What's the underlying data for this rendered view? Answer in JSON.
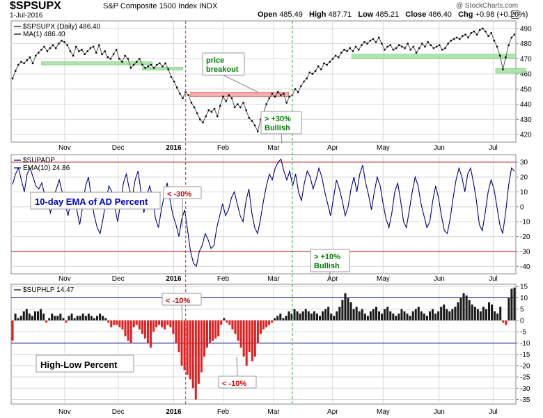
{
  "header": {
    "symbol": "$SPSUPX",
    "index_name": "S&P Composite 1500 Index  INDX",
    "date": "1-Jul-2016",
    "open_label": "Open",
    "open": "485.49",
    "high_label": "High",
    "high": "487.71",
    "low_label": "Low",
    "low": "485.21",
    "close_label": "Close",
    "close": "486.40",
    "chg_label": "Chg",
    "chg": "+0.98 (+0.20%)",
    "credit": "@ StockCharts.com",
    "chg_icon": "down-triangle-icon"
  },
  "colors": {
    "price": "#000000",
    "ema": "#000080",
    "bar_up": "#1a1a1a",
    "bar_down": "#e02020",
    "threshold": "#c00000",
    "ref_line": "#000080",
    "support_fill": "#a6e3a6",
    "resistance_fill": "#f4a6a6",
    "marker_red": "#e05050",
    "marker_green": "#5cb85c",
    "note_green": "#008000",
    "note_red": "#cc0000",
    "note_blue": "#0000cc"
  },
  "months": [
    "Nov",
    "Dec",
    "2016",
    "Feb",
    "Mar",
    "Apr",
    "May",
    "Jun",
    "Jul"
  ],
  "chart_data": [
    {
      "type": "line",
      "panel": "price",
      "legend": [
        "$SPSUPX (Daily) 486.40",
        "MA(1) 486.40"
      ],
      "ylim": [
        415,
        495
      ],
      "yticks": [
        420,
        430,
        440,
        450,
        460,
        470,
        480,
        490
      ],
      "values": [
        457,
        462,
        466,
        468,
        467,
        469,
        471,
        467,
        472,
        474,
        476,
        478,
        475,
        477,
        479,
        477,
        480,
        482,
        481,
        479,
        475,
        472,
        478,
        475,
        476,
        473,
        475,
        477,
        478,
        474,
        479,
        473,
        475,
        471,
        470,
        473,
        476,
        470,
        468,
        472,
        470,
        464,
        466,
        468,
        470,
        466,
        464,
        465,
        466,
        464,
        466,
        467,
        465,
        467,
        463,
        458,
        455,
        451,
        447,
        444,
        448,
        446,
        441,
        438,
        434,
        430,
        428,
        432,
        436,
        435,
        437,
        432,
        439,
        445,
        442,
        446,
        444,
        438,
        440,
        438,
        441,
        436,
        431,
        429,
        426,
        422,
        430,
        434,
        440,
        444,
        447,
        445,
        448,
        446,
        447,
        441,
        445,
        446,
        450,
        448,
        452,
        455,
        457,
        461,
        460,
        462,
        465,
        463,
        467,
        466,
        468,
        470,
        472,
        471,
        474,
        476,
        475,
        477,
        475,
        478,
        476,
        479,
        481,
        480,
        482,
        483,
        481,
        484,
        480,
        476,
        478,
        479,
        476,
        477,
        479,
        478,
        477,
        480,
        476,
        478,
        474,
        477,
        480,
        478,
        481,
        479,
        477,
        478,
        479,
        476,
        477,
        480,
        482,
        483,
        484,
        483,
        485,
        486,
        484,
        487,
        488,
        486,
        489,
        490,
        488,
        485,
        487,
        482,
        478,
        472,
        463,
        471,
        479,
        484,
        486
      ],
      "support_zones": [
        {
          "x0": 0.06,
          "x1": 0.28,
          "y0": 466,
          "y1": 468
        },
        {
          "x0": 0.26,
          "x1": 0.34,
          "y0": 462.5,
          "y1": 464.5
        },
        {
          "x0": 0.675,
          "x1": 1.0,
          "y0": 470,
          "y1": 473
        },
        {
          "x0": 0.96,
          "x1": 1.02,
          "y0": 460.5,
          "y1": 463.5
        }
      ],
      "resistance_zone": {
        "x0": 0.355,
        "x1": 0.55,
        "y0": 445,
        "y1": 448
      },
      "annotations": [
        {
          "text": "price breakout",
          "lines": [
            "price",
            "breakout"
          ],
          "color": "green"
        },
        {
          "text": "> +30% Bullish",
          "lines": [
            "> +30%",
            "Bullish"
          ],
          "color": "green"
        }
      ]
    },
    {
      "type": "line",
      "panel": "ad_percent",
      "legend": [
        "$SUPADP",
        "EMA(10) 24.86"
      ],
      "label": "10-day EMA of AD Percent",
      "ylim": [
        -45,
        35
      ],
      "yticks": [
        30,
        20,
        10,
        0,
        -10,
        -20,
        -30,
        -40
      ],
      "thresholds": [
        30,
        -30
      ],
      "values": [
        15,
        22,
        26,
        18,
        10,
        22,
        26,
        20,
        14,
        12,
        16,
        8,
        2,
        -4,
        6,
        12,
        18,
        10,
        2,
        -6,
        4,
        10,
        -2,
        -12,
        0,
        14,
        20,
        6,
        -6,
        -14,
        -18,
        -8,
        4,
        14,
        10,
        0,
        -10,
        2,
        16,
        22,
        12,
        6,
        18,
        24,
        10,
        -4,
        8,
        14,
        6,
        -8,
        -14,
        -2,
        8,
        16,
        4,
        -6,
        -12,
        -20,
        -8,
        -2,
        -16,
        -30,
        -38,
        -40,
        -30,
        -26,
        -18,
        -22,
        -28,
        -26,
        -14,
        -6,
        2,
        -6,
        -2,
        6,
        10,
        2,
        -6,
        -10,
        4,
        12,
        -4,
        -14,
        -18,
        -8,
        4,
        14,
        22,
        18,
        26,
        30,
        32,
        24,
        18,
        24,
        14,
        22,
        10,
        4,
        16,
        24,
        20,
        12,
        18,
        26,
        20,
        10,
        2,
        -6,
        6,
        18,
        12,
        4,
        -6,
        0,
        12,
        20,
        10,
        22,
        28,
        16,
        8,
        -2,
        10,
        20,
        14,
        2,
        -8,
        -14,
        -4,
        10,
        16,
        4,
        -10,
        -14,
        -2,
        10,
        20,
        14,
        2,
        -6,
        -14,
        -10,
        4,
        14,
        6,
        -6,
        -16,
        -18,
        -8,
        6,
        18,
        26,
        20,
        10,
        22,
        26,
        16,
        4,
        -12,
        -16,
        -4,
        10,
        18,
        12,
        0,
        -12,
        -18,
        -4,
        14,
        26,
        24
      ],
      "annotations": [
        {
          "text": "< -30%",
          "color": "red"
        },
        {
          "text": "> +10% Bullish",
          "lines": [
            "> +10%",
            "Bullish"
          ],
          "color": "green"
        }
      ]
    },
    {
      "type": "bar",
      "panel": "high_low",
      "legend": [
        "$SUPHLP 14.47"
      ],
      "label": "High-Low Percent",
      "ylim": [
        -37,
        16
      ],
      "yticks": [
        15,
        10,
        5,
        0,
        -5,
        -10,
        -15,
        -20,
        -25,
        -30,
        -35
      ],
      "ref_lines": [
        10,
        -10
      ],
      "values": [
        -9,
        3,
        1,
        2,
        4,
        5,
        3,
        2,
        4,
        4,
        5,
        3,
        -1,
        1,
        3,
        2,
        2,
        3,
        1,
        -1,
        2,
        3,
        1,
        2,
        2,
        3,
        2,
        3,
        2,
        1,
        2,
        3,
        2,
        1,
        -1,
        -3,
        -2,
        -2,
        -3,
        -4,
        -7,
        -9,
        -10,
        -3,
        -2,
        -4,
        -6,
        -8,
        -10,
        -12,
        -5,
        -3,
        -2,
        -3,
        -4,
        -2,
        -3,
        -6,
        -10,
        -14,
        -20,
        -22,
        -24,
        -26,
        -30,
        -35,
        -28,
        -23,
        -16,
        -12,
        -10,
        -9,
        -8,
        -7,
        -2,
        1,
        -1,
        -2,
        -4,
        -6,
        -9,
        -12,
        -16,
        -20,
        -14,
        -18,
        -16,
        -10,
        -6,
        -4,
        -3,
        -2,
        -1,
        1,
        2,
        3,
        1,
        2,
        4,
        3,
        5,
        4,
        3,
        4,
        5,
        4,
        3,
        4,
        3,
        2,
        4,
        5,
        6,
        3,
        2,
        4,
        6,
        9,
        12,
        10,
        8,
        5,
        6,
        4,
        5,
        3,
        2,
        4,
        5,
        6,
        4,
        3,
        5,
        6,
        4,
        3,
        2,
        3,
        5,
        4,
        3,
        2,
        4,
        5,
        6,
        4,
        3,
        2,
        4,
        5,
        3,
        4,
        6,
        7,
        5,
        4,
        5,
        6,
        8,
        10,
        12,
        11,
        9,
        7,
        6,
        5,
        4,
        6,
        5,
        8,
        7,
        4,
        3,
        6,
        -1,
        -2,
        10,
        14,
        14.5
      ],
      "annotations": [
        {
          "text": "< -10%",
          "color": "red"
        },
        {
          "text": "< -10%",
          "color": "red"
        }
      ]
    }
  ]
}
